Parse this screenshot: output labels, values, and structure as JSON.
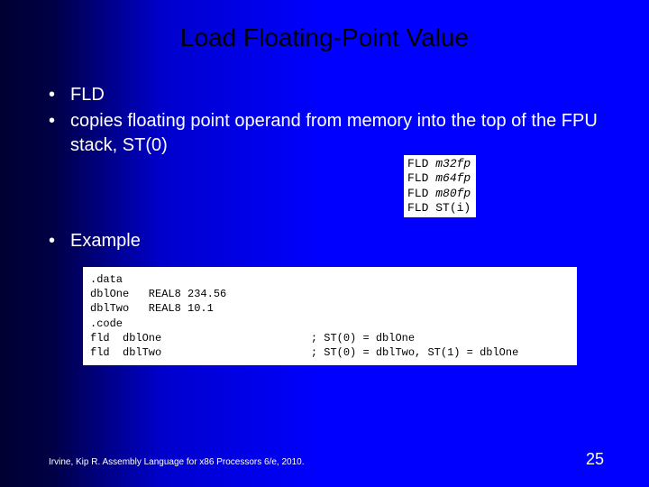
{
  "title": "Load Floating-Point Value",
  "bullets": [
    "FLD",
    "copies floating point operand from memory into the top of the FPU stack, ST(0)"
  ],
  "example_label": "Example",
  "fld_table": {
    "rows": [
      {
        "mnemonic": "FLD",
        "operand": "m32fp",
        "italic": true
      },
      {
        "mnemonic": "FLD",
        "operand": "m64fp",
        "italic": true
      },
      {
        "mnemonic": "FLD",
        "operand": "m80fp",
        "italic": true
      },
      {
        "mnemonic": "FLD",
        "operand": "ST(i)",
        "italic": false
      }
    ]
  },
  "code": {
    "lines": [
      ".data",
      "dblOne   REAL8 234.56",
      "dblTwo   REAL8 10.1",
      ".code",
      "fld  dblOne                       ; ST(0) = dblOne",
      "fld  dblTwo                       ; ST(0) = dblTwo, ST(1) = dblOne"
    ]
  },
  "footer": "Irvine, Kip R. Assembly Language for x86 Processors 6/e, 2010.",
  "page_number": "25",
  "colors": {
    "title_text": "#000000",
    "body_text": "#ffffff",
    "code_bg": "#ffffff",
    "code_text": "#000000"
  }
}
